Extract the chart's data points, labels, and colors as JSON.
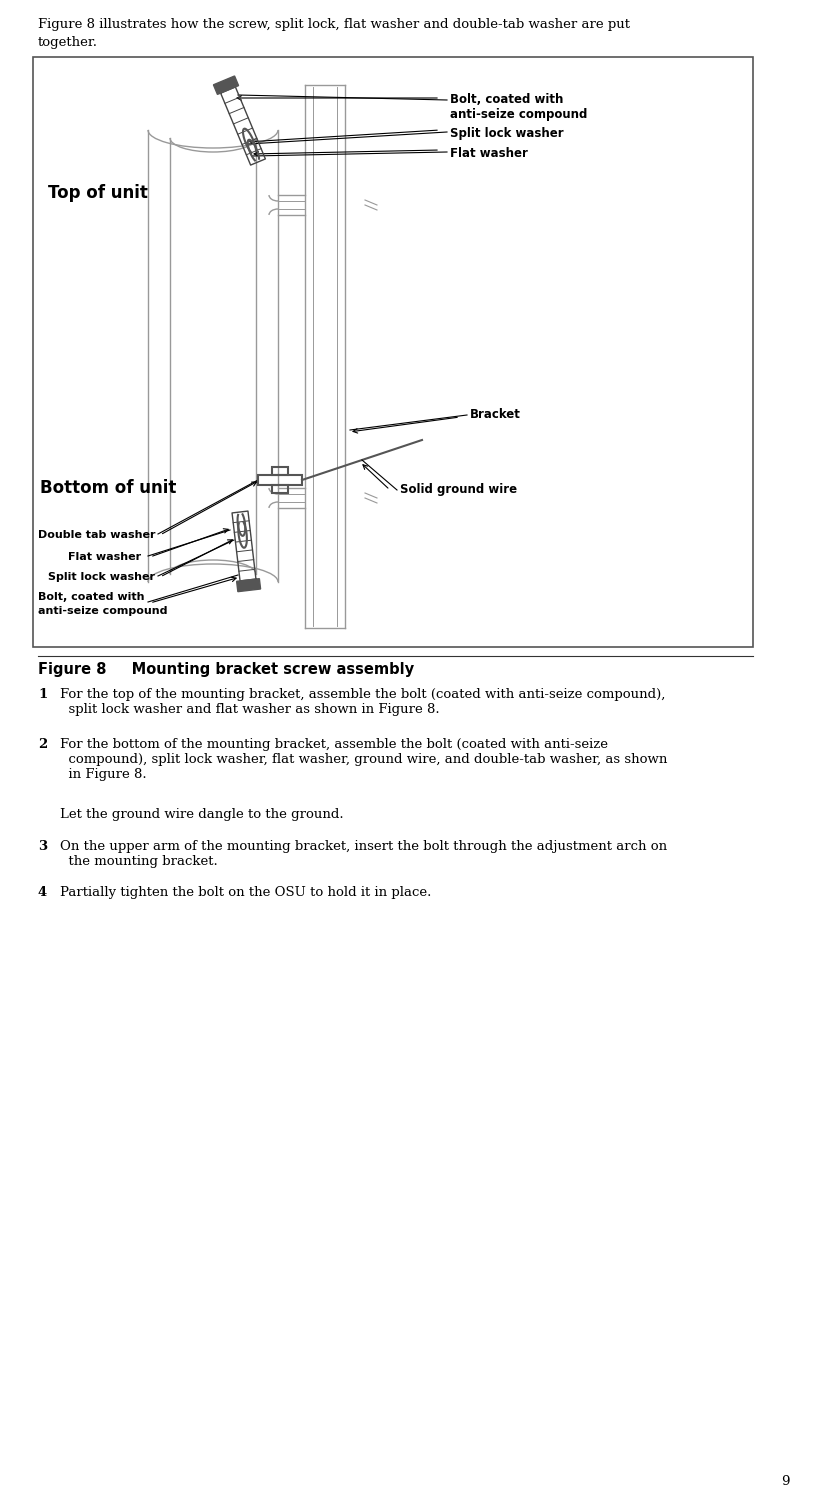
{
  "page_width": 8.24,
  "page_height": 15.04,
  "bg_color": "#ffffff",
  "text_color": "#000000",
  "intro_line1": "Figure 8 illustrates how the screw, split lock, flat washer and double-tab washer are put",
  "intro_line2": "together.",
  "figure_caption_bold": "Figure 8",
  "figure_caption_rest": "     Mounting bracket screw assembly",
  "label_top_unit": "Top of unit",
  "label_bottom_unit": "Bottom of unit",
  "label_bracket": "Bracket",
  "label_solid_ground": "Solid ground wire",
  "label_bolt_top_1": "Bolt, coated with",
  "label_bolt_top_2": "anti-seize compound",
  "label_split_lock_top": "Split lock washer",
  "label_flat_top": "Flat washer",
  "label_double_tab": "Double tab washer",
  "label_flat_bottom": "Flat washer",
  "label_split_lock_bottom": "Split lock washer",
  "label_bolt_bottom_1": "Bolt, coated with",
  "label_bolt_bottom_2": "anti-seize compound",
  "step1_num": "1",
  "step1_text": "For the top of the mounting bracket, assemble the bolt (coated with anti-seize compound),\n  split lock washer and flat washer as shown in Figure 8.",
  "step2_num": "2",
  "step2_text": "For the bottom of the mounting bracket, assemble the bolt (coated with anti-seize\n  compound), split lock washer, flat washer, ground wire, and double-tab washer, as shown\n  in Figure 8.",
  "step2b_text": "Let the ground wire dangle to the ground.",
  "step3_num": "3",
  "step3_text": "On the upper arm of the mounting bracket, insert the bolt through the adjustment arch on\n  the mounting bracket.",
  "step4_num": "4",
  "step4_text": "Partially tighten the bolt on the OSU to hold it in place.",
  "page_num": "9",
  "lc": "#999999",
  "dc": "#555555",
  "arrow_color": "#000000"
}
